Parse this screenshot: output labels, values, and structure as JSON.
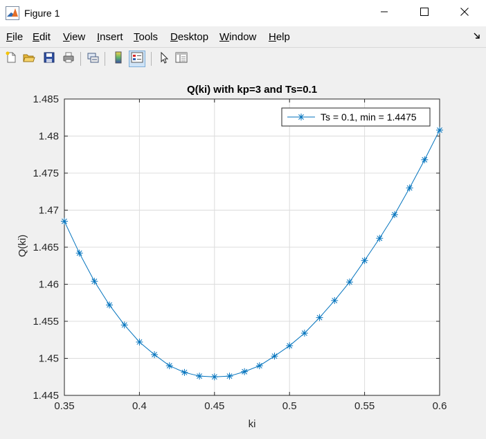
{
  "window": {
    "title": "Figure 1",
    "minimize_icon": "minimize-icon",
    "maximize_icon": "maximize-icon",
    "close_icon": "close-icon"
  },
  "menu": {
    "items": [
      {
        "label": "File",
        "accel": "F",
        "rest": "ile"
      },
      {
        "label": "Edit",
        "accel": "E",
        "rest": "dit"
      },
      {
        "label": "View",
        "accel": "V",
        "rest": "iew"
      },
      {
        "label": "Insert",
        "accel": "I",
        "rest": "nsert"
      },
      {
        "label": "Tools",
        "accel": "T",
        "rest": "ools"
      },
      {
        "label": "Desktop",
        "accel": "D",
        "rest": "esktop"
      },
      {
        "label": "Window",
        "accel": "W",
        "rest": "indow"
      },
      {
        "label": "Help",
        "accel": "H",
        "rest": "elp"
      }
    ],
    "dock_icon": "dock-arrow-icon"
  },
  "toolbar": {
    "icons": [
      "new-figure-icon",
      "open-file-icon",
      "save-icon",
      "print-icon",
      "link-plot-icon",
      "colorbar-icon",
      "legend-icon",
      "edit-plot-icon",
      "property-inspector-icon"
    ]
  },
  "colors": {
    "series": "#0072bd",
    "grid": "#dcdcdc",
    "axes": "#262626",
    "background": "#f0f0f0"
  },
  "chart_data": {
    "type": "line",
    "title": "Q(ki) with kp=3 and Ts=0.1",
    "xlabel": "ki",
    "ylabel": "Q(ki)",
    "xlim": [
      0.35,
      0.6
    ],
    "ylim": [
      1.445,
      1.485
    ],
    "xticks": [
      "0.35",
      "0.4",
      "0.45",
      "0.5",
      "0.55",
      "0.6"
    ],
    "yticks": [
      "1.445",
      "1.45",
      "1.455",
      "1.46",
      "1.465",
      "1.47",
      "1.475",
      "1.48",
      "1.485"
    ],
    "grid": true,
    "legend_position": "top-right",
    "marker": "asterisk",
    "series": [
      {
        "name": "Ts = 0.1, min = 1.4475",
        "x": [
          0.35,
          0.36,
          0.37,
          0.38,
          0.39,
          0.4,
          0.41,
          0.42,
          0.43,
          0.44,
          0.45,
          0.46,
          0.47,
          0.48,
          0.49,
          0.5,
          0.51,
          0.52,
          0.53,
          0.54,
          0.55,
          0.56,
          0.57,
          0.58,
          0.59,
          0.6
        ],
        "y": [
          1.4685,
          1.4642,
          1.4604,
          1.4572,
          1.4545,
          1.4522,
          1.4505,
          1.449,
          1.4481,
          1.4476,
          1.4475,
          1.4476,
          1.4482,
          1.449,
          1.4503,
          1.4517,
          1.4534,
          1.4555,
          1.4578,
          1.4603,
          1.4632,
          1.4662,
          1.4694,
          1.473,
          1.4768,
          1.4808
        ]
      }
    ]
  }
}
